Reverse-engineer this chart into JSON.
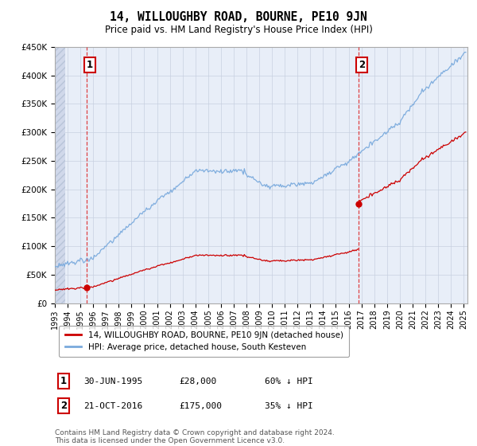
{
  "title": "14, WILLOUGHBY ROAD, BOURNE, PE10 9JN",
  "subtitle": "Price paid vs. HM Land Registry's House Price Index (HPI)",
  "ylim": [
    0,
    450000
  ],
  "yticks": [
    0,
    50000,
    100000,
    150000,
    200000,
    250000,
    300000,
    350000,
    400000,
    450000
  ],
  "ytick_labels": [
    "£0",
    "£50K",
    "£100K",
    "£150K",
    "£200K",
    "£250K",
    "£300K",
    "£350K",
    "£400K",
    "£450K"
  ],
  "xmin": 1993,
  "xmax": 2025.3,
  "transaction1_date": 1995.5,
  "transaction1_price": 28000,
  "transaction1_label": "1",
  "transaction1_info": "30-JUN-1995",
  "transaction1_amount": "£28,000",
  "transaction1_hpi": "60% ↓ HPI",
  "transaction2_date": 2016.8,
  "transaction2_price": 175000,
  "transaction2_label": "2",
  "transaction2_info": "21-OCT-2016",
  "transaction2_amount": "£175,000",
  "transaction2_hpi": "35% ↓ HPI",
  "legend_line1": "14, WILLOUGHBY ROAD, BOURNE, PE10 9JN (detached house)",
  "legend_line2": "HPI: Average price, detached house, South Kesteven",
  "footnote": "Contains HM Land Registry data © Crown copyright and database right 2024.\nThis data is licensed under the Open Government Licence v3.0.",
  "line_color_price": "#cc0000",
  "line_color_hpi": "#7aaadd",
  "dot_color": "#cc0000",
  "grid_color": "#c8d0e0",
  "vline_color": "#dd2222",
  "annotation_box_color": "#cc0000",
  "bg_color": "#e8eef8"
}
